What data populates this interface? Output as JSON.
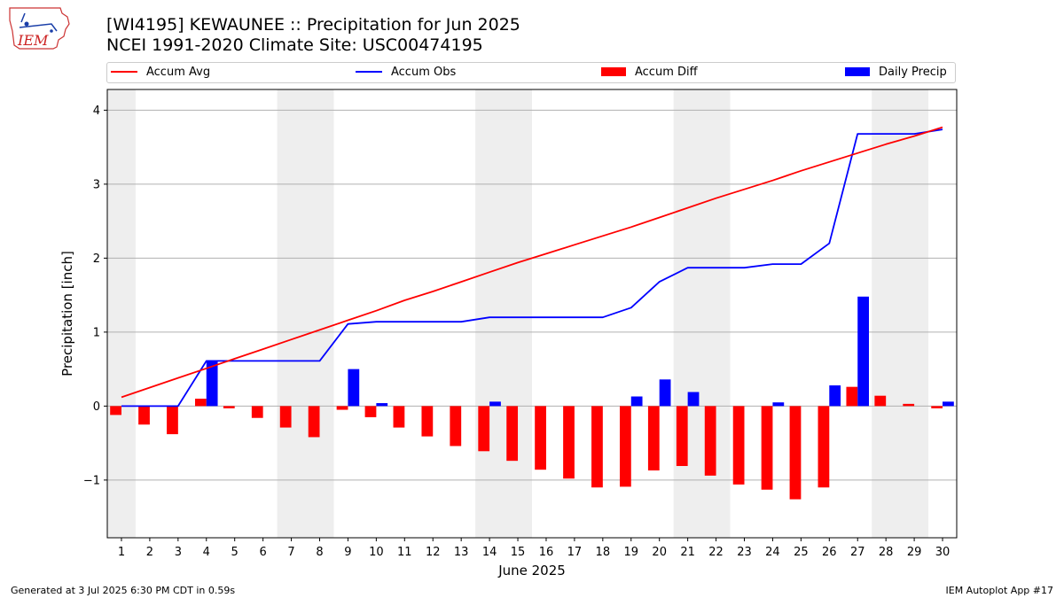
{
  "header": {
    "title_line1": "[WI4195] KEWAUNEE :: Precipitation for Jun 2025",
    "title_line2": "NCEI 1991-2020 Climate Site: USC00474195"
  },
  "logo": {
    "text": "IEM"
  },
  "legend": {
    "placement": "top",
    "items": [
      {
        "label": "Accum Avg",
        "type": "line",
        "color": "#ff0000"
      },
      {
        "label": "Accum Obs",
        "type": "line",
        "color": "#0000ff"
      },
      {
        "label": "Accum Diff",
        "type": "bar",
        "color": "#ff0000"
      },
      {
        "label": "Daily Precip",
        "type": "bar",
        "color": "#0000ff"
      }
    ]
  },
  "chart_data": {
    "type": "bar",
    "xlabel": "June 2025",
    "ylabel": "Precipitation [inch]",
    "ylim": [
      -1.78,
      4.28
    ],
    "yticks": [
      -1,
      0,
      1,
      2,
      3,
      4
    ],
    "ytick_labels": [
      "−1",
      "0",
      "1",
      "2",
      "3",
      "4"
    ],
    "grid": "horizontal",
    "x": [
      1,
      2,
      3,
      4,
      5,
      6,
      7,
      8,
      9,
      10,
      11,
      12,
      13,
      14,
      15,
      16,
      17,
      18,
      19,
      20,
      21,
      22,
      23,
      24,
      25,
      26,
      27,
      28,
      29,
      30
    ],
    "weekend_shading": [
      [
        0.5,
        1.5
      ],
      [
        6.5,
        8.5
      ],
      [
        13.5,
        15.5
      ],
      [
        20.5,
        22.5
      ],
      [
        27.5,
        29.5
      ]
    ],
    "series": [
      {
        "name": "Accum Avg",
        "type": "line",
        "color": "#ff0000",
        "values": [
          0.12,
          0.25,
          0.38,
          0.51,
          0.64,
          0.77,
          0.9,
          1.03,
          1.16,
          1.29,
          1.43,
          1.55,
          1.68,
          1.81,
          1.94,
          2.06,
          2.18,
          2.3,
          2.42,
          2.55,
          2.68,
          2.81,
          2.93,
          3.05,
          3.18,
          3.3,
          3.42,
          3.54,
          3.65,
          3.77
        ]
      },
      {
        "name": "Accum Obs",
        "type": "line",
        "color": "#0000ff",
        "values": [
          0.0,
          0.0,
          0.0,
          0.61,
          0.61,
          0.61,
          0.61,
          0.61,
          1.11,
          1.14,
          1.14,
          1.14,
          1.14,
          1.2,
          1.2,
          1.2,
          1.2,
          1.2,
          1.33,
          1.68,
          1.87,
          1.87,
          1.87,
          1.92,
          1.92,
          2.2,
          3.68,
          3.68,
          3.68,
          3.74
        ]
      },
      {
        "name": "Accum Diff",
        "type": "bar",
        "color": "#ff0000",
        "values": [
          -0.12,
          -0.25,
          -0.38,
          0.1,
          -0.03,
          -0.16,
          -0.29,
          -0.42,
          -0.05,
          -0.15,
          -0.29,
          -0.41,
          -0.54,
          -0.61,
          -0.74,
          -0.86,
          -0.98,
          -1.1,
          -1.09,
          -0.87,
          -0.81,
          -0.94,
          -1.06,
          -1.13,
          -1.26,
          -1.1,
          0.26,
          0.14,
          0.03,
          -0.03
        ]
      },
      {
        "name": "Daily Precip",
        "type": "bar",
        "color": "#0000ff",
        "values": [
          0,
          0,
          0,
          0.61,
          0,
          0,
          0,
          0,
          0.5,
          0.04,
          0,
          0,
          0,
          0.06,
          0,
          0,
          0,
          0,
          0.13,
          0.36,
          0.19,
          0,
          0,
          0.05,
          0,
          0.28,
          1.48,
          0,
          0,
          0.06
        ]
      }
    ]
  },
  "footer": {
    "left": "Generated at 3 Jul 2025 6:30 PM CDT in 0.59s",
    "right": "IEM Autoplot App #17"
  }
}
